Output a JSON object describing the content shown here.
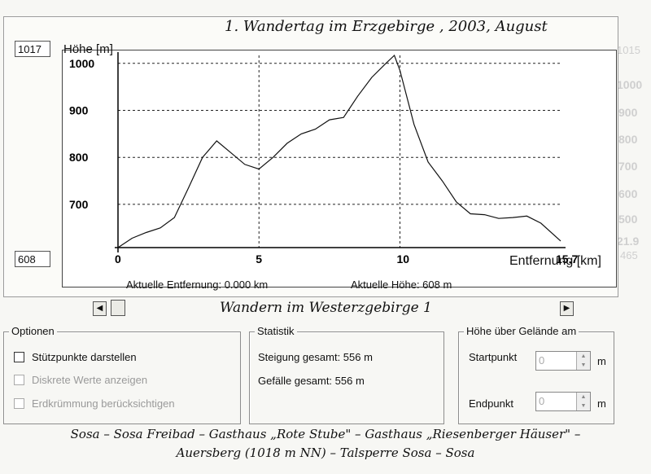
{
  "chart": {
    "title": "1. Wandertag im Erzgebirge , 2003, August",
    "max_box": "1017",
    "min_box": "608",
    "ylabel": "Höhe [m]",
    "xlabel": "Entfernung [km]"
  },
  "chart_data": {
    "type": "line",
    "title": "1. Wandertag im Erzgebirge , 2003, August",
    "xlabel": "Entfernung [km]",
    "ylabel": "Höhe [m]",
    "xlim": [
      0,
      15.7
    ],
    "ylim": [
      608,
      1017
    ],
    "grid": true,
    "x_ticks": [
      "0",
      "5",
      "10",
      "15.7"
    ],
    "y_ticks": [
      "1000",
      "900",
      "800",
      "700"
    ],
    "x": [
      0,
      0.5,
      1.0,
      1.5,
      2.0,
      2.5,
      3.0,
      3.5,
      4.0,
      4.5,
      5.0,
      5.5,
      6.0,
      6.5,
      7.0,
      7.5,
      8.0,
      8.5,
      9.0,
      9.5,
      9.8,
      10.0,
      10.5,
      11.0,
      11.5,
      12.0,
      12.5,
      13.0,
      13.5,
      14.0,
      14.5,
      15.0,
      15.7
    ],
    "y": [
      608,
      628,
      640,
      650,
      672,
      735,
      800,
      835,
      810,
      785,
      775,
      800,
      830,
      850,
      860,
      880,
      885,
      930,
      970,
      1000,
      1017,
      985,
      870,
      790,
      750,
      705,
      680,
      678,
      670,
      672,
      675,
      660,
      622
    ]
  },
  "readouts": {
    "distance": "Aktuelle Entfernung: 0.000 km",
    "height": "Aktuelle Höhe: 608 m"
  },
  "track": {
    "title": "Wandern im Westerzgebirge 1",
    "left_arrow": "◀",
    "right_arrow": "▶"
  },
  "options": {
    "legend": "Optionen",
    "items": [
      {
        "label": "Stützpunkte darstellen",
        "enabled": true
      },
      {
        "label": "Diskrete Werte anzeigen",
        "enabled": false
      },
      {
        "label": "Erdkrümmung berücksichtigen",
        "enabled": false
      }
    ]
  },
  "stats": {
    "legend": "Statistik",
    "ascent": "Steigung gesamt: 556 m",
    "descent": "Gefälle gesamt: 556 m"
  },
  "terrain": {
    "legend": "Höhe über Gelände am",
    "start_label": "Startpunkt",
    "start_value": "0",
    "end_label": "Endpunkt",
    "end_value": "0",
    "unit": "m"
  },
  "route": {
    "line1": "Sosa – Sosa Freibad – Gasthaus „Rote Stube\" – Gasthaus „Riesenberger Häuser\" –",
    "line2": "Auersberg (1018 m NN) – Talsperre Sosa – Sosa"
  },
  "background_ghost": {
    "box": "1015",
    "ylabel": "Höhe [m]",
    "ticks": [
      "1000",
      "900",
      "800",
      "700",
      "600",
      "500"
    ],
    "x_end": "21.9",
    "xlabel": "Entfernung [km]",
    "small_box": "465",
    "readout": "Aktuelle En...",
    "options": "Optionen",
    "stats": "Statistik"
  }
}
